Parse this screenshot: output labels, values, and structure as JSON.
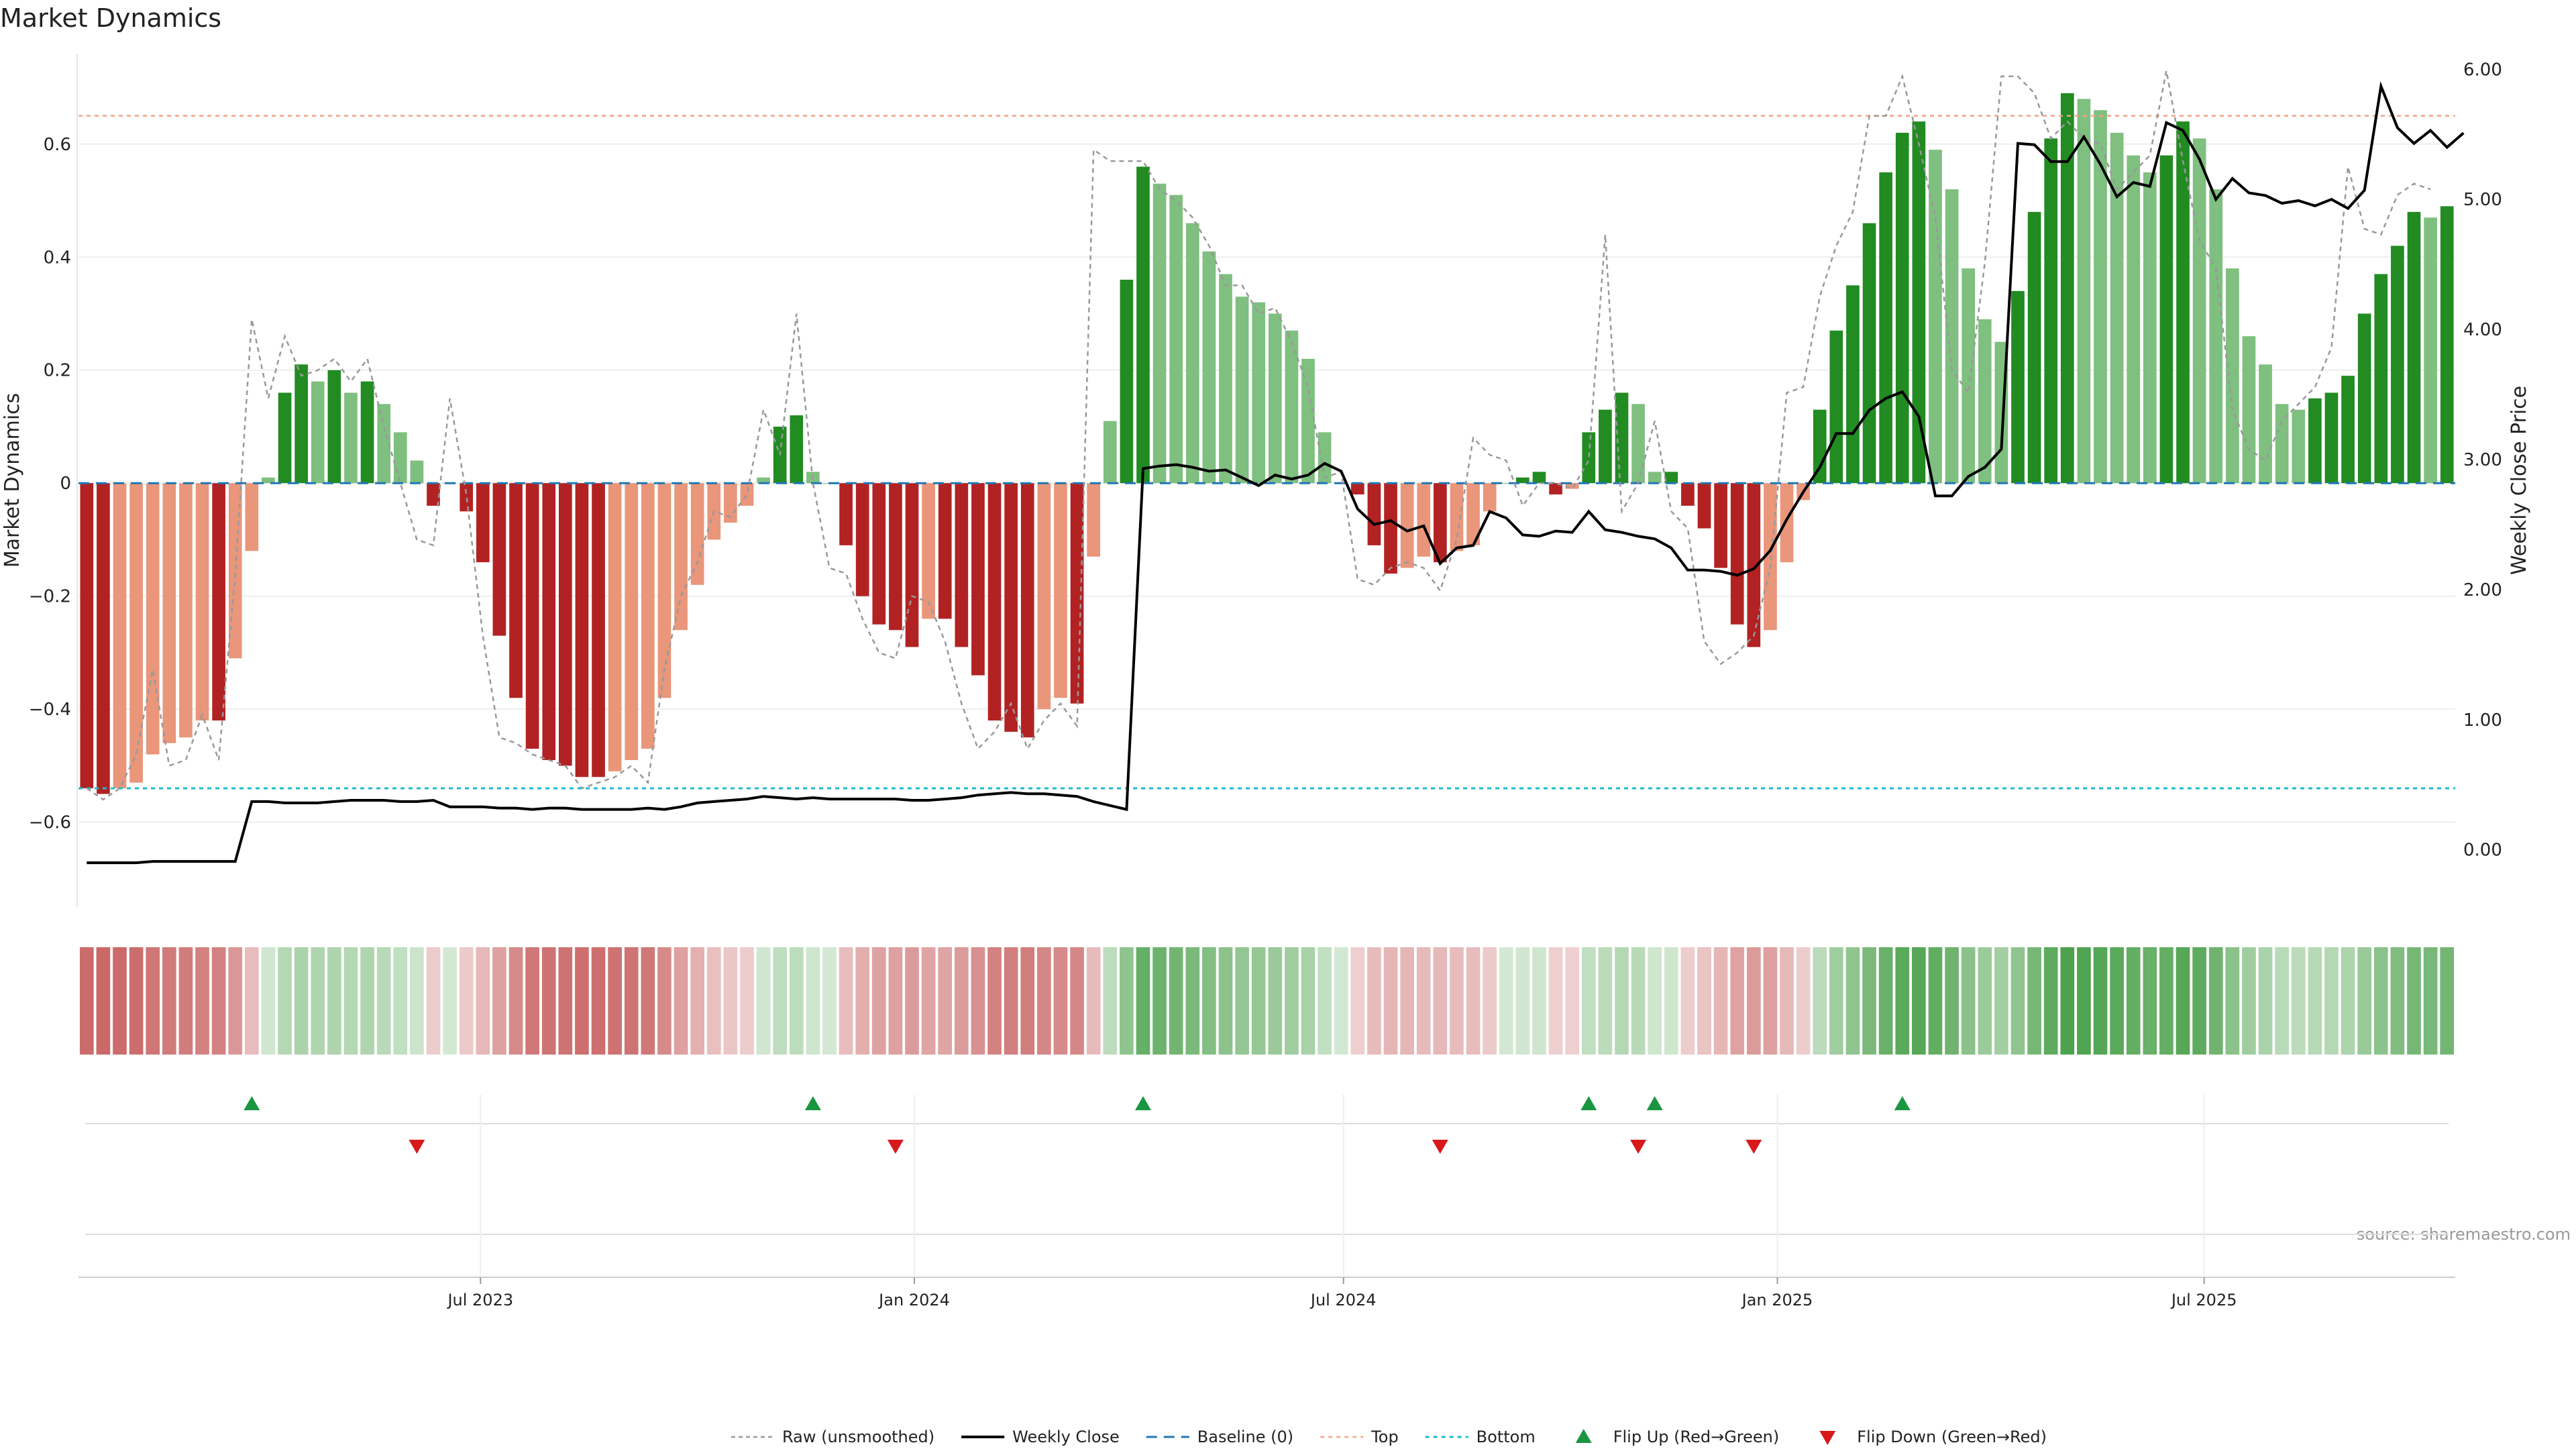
{
  "chart_data": {
    "type": "bar",
    "title": "Market Dynamics",
    "source": "source: sharemaestro.com",
    "left_axis": {
      "label": "Market Dynamics",
      "ylim": [
        -0.75,
        0.76
      ],
      "ticks": [
        -0.6,
        -0.4,
        -0.2,
        0,
        0.2,
        0.4,
        0.6
      ],
      "tick_labels": [
        "−0.6",
        "−0.4",
        "−0.2",
        "0",
        "0.2",
        "0.4",
        "0.6"
      ]
    },
    "right_axis": {
      "label": "Weekly Close Price",
      "ylim": [
        -0.44,
        6.12
      ],
      "ticks": [
        0,
        1,
        2,
        3,
        4,
        5,
        6
      ],
      "tick_labels": [
        "0.00",
        "1.00",
        "2.00",
        "3.00",
        "4.00",
        "5.00",
        "6.00"
      ]
    },
    "x_axis": {
      "start_date": "2023-01-15",
      "interval_days": 7,
      "ticks": [
        {
          "date": "2023-07-01",
          "label": "Jul 2023"
        },
        {
          "date": "2024-01-01",
          "label": "Jan 2024"
        },
        {
          "date": "2024-07-01",
          "label": "Jul 2024"
        },
        {
          "date": "2025-01-01",
          "label": "Jan 2025"
        },
        {
          "date": "2025-07-01",
          "label": "Jul 2025"
        }
      ]
    },
    "levels": {
      "top": 0.65,
      "bottom": -0.54,
      "baseline": 0
    },
    "colors": {
      "strong_red": "#b22222",
      "weak_red": "#e9967a",
      "strong_green": "#228b22",
      "weak_green": "#7fbf7f",
      "raw": "#999999",
      "close": "#000000",
      "baseline": "#1f77b4",
      "top": "#f4a582",
      "bottom": "#17becf",
      "flip_up": "#1a9641",
      "flip_down": "#d7191c"
    },
    "series": [
      {
        "name": "Market Dynamics",
        "values": [
          -0.54,
          -0.55,
          -0.54,
          -0.53,
          -0.48,
          -0.46,
          -0.45,
          -0.42,
          -0.42,
          -0.31,
          -0.12,
          0.01,
          0.16,
          0.21,
          0.18,
          0.2,
          0.16,
          0.18,
          0.14,
          0.09,
          0.04,
          -0.04,
          0.0,
          -0.05,
          -0.14,
          -0.27,
          -0.38,
          -0.47,
          -0.49,
          -0.5,
          -0.52,
          -0.52,
          -0.51,
          -0.49,
          -0.47,
          -0.38,
          -0.26,
          -0.18,
          -0.1,
          -0.07,
          -0.04,
          0.01,
          0.1,
          0.12,
          0.02,
          0.0,
          -0.11,
          -0.2,
          -0.25,
          -0.26,
          -0.29,
          -0.24,
          -0.24,
          -0.29,
          -0.34,
          -0.42,
          -0.44,
          -0.45,
          -0.4,
          -0.38,
          -0.39,
          -0.13,
          0.11,
          0.36,
          0.56,
          0.53,
          0.51,
          0.46,
          0.41,
          0.37,
          0.33,
          0.32,
          0.3,
          0.27,
          0.22,
          0.09,
          0.0,
          -0.02,
          -0.11,
          -0.16,
          -0.15,
          -0.13,
          -0.14,
          -0.12,
          -0.11,
          -0.05,
          0.0,
          0.01,
          0.02,
          -0.02,
          -0.01,
          0.09,
          0.13,
          0.16,
          0.14,
          0.02,
          0.02,
          -0.04,
          -0.08,
          -0.15,
          -0.25,
          -0.29,
          -0.26,
          -0.14,
          -0.03,
          0.13,
          0.27,
          0.35,
          0.46,
          0.55,
          0.62,
          0.64,
          0.59,
          0.52,
          0.38,
          0.29,
          0.25,
          0.34,
          0.48,
          0.61,
          0.69,
          0.68,
          0.66,
          0.62,
          0.58,
          0.55,
          0.58,
          0.64,
          0.61,
          0.52,
          0.38,
          0.26,
          0.21,
          0.14,
          0.13,
          0.15,
          0.16,
          0.19,
          0.3,
          0.37,
          0.42,
          0.48,
          0.47,
          0.49
        ]
      },
      {
        "name": "Raw (unsmoothed)",
        "values": [
          -0.54,
          -0.56,
          -0.54,
          -0.48,
          -0.33,
          -0.5,
          -0.49,
          -0.41,
          -0.49,
          -0.16,
          0.29,
          0.15,
          0.26,
          0.19,
          0.2,
          0.22,
          0.18,
          0.22,
          0.1,
          0.0,
          -0.1,
          -0.11,
          0.15,
          -0.02,
          -0.27,
          -0.45,
          -0.46,
          -0.48,
          -0.49,
          -0.5,
          -0.54,
          -0.53,
          -0.52,
          -0.5,
          -0.53,
          -0.33,
          -0.2,
          -0.14,
          -0.05,
          -0.06,
          -0.02,
          0.13,
          0.05,
          0.3,
          0.0,
          -0.15,
          -0.16,
          -0.24,
          -0.3,
          -0.31,
          -0.2,
          -0.21,
          -0.28,
          -0.39,
          -0.47,
          -0.44,
          -0.39,
          -0.47,
          -0.42,
          -0.39,
          -0.43,
          0.59,
          0.57,
          0.57,
          0.57,
          0.52,
          0.5,
          0.47,
          0.42,
          0.35,
          0.35,
          0.3,
          0.31,
          0.25,
          0.17,
          0.01,
          0.02,
          -0.17,
          -0.18,
          -0.15,
          -0.14,
          -0.15,
          -0.19,
          -0.1,
          0.08,
          0.05,
          0.04,
          -0.04,
          0.0,
          0.0,
          -0.01,
          0.04,
          0.44,
          -0.05,
          0.0,
          0.11,
          -0.05,
          -0.08,
          -0.28,
          -0.32,
          -0.3,
          -0.27,
          -0.15,
          0.16,
          0.17,
          0.33,
          0.42,
          0.48,
          0.65,
          0.65,
          0.72,
          0.6,
          0.47,
          0.2,
          0.16,
          0.39,
          0.72,
          0.72,
          0.69,
          0.61,
          0.64,
          0.61,
          0.6,
          0.52,
          0.55,
          0.58,
          0.73,
          0.57,
          0.43,
          0.38,
          0.13,
          0.06,
          0.04,
          0.11,
          0.14,
          0.17,
          0.24,
          0.56,
          0.45,
          0.44,
          0.51,
          0.53,
          0.52
        ]
      },
      {
        "name": "Weekly Close",
        "values": [
          -0.1,
          -0.1,
          -0.1,
          -0.1,
          -0.09,
          -0.09,
          -0.09,
          -0.09,
          -0.09,
          -0.09,
          0.37,
          0.37,
          0.36,
          0.36,
          0.36,
          0.37,
          0.38,
          0.38,
          0.38,
          0.37,
          0.37,
          0.38,
          0.33,
          0.33,
          0.33,
          0.32,
          0.32,
          0.31,
          0.32,
          0.32,
          0.31,
          0.31,
          0.31,
          0.31,
          0.32,
          0.31,
          0.33,
          0.36,
          0.37,
          0.38,
          0.39,
          0.41,
          0.4,
          0.39,
          0.4,
          0.39,
          0.39,
          0.39,
          0.39,
          0.39,
          0.38,
          0.38,
          0.39,
          0.4,
          0.42,
          0.43,
          0.44,
          0.43,
          0.43,
          0.42,
          0.41,
          0.37,
          0.34,
          0.31,
          2.93,
          2.95,
          2.96,
          2.94,
          2.91,
          2.92,
          2.86,
          2.8,
          2.88,
          2.85,
          2.88,
          2.97,
          2.91,
          2.62,
          2.5,
          2.53,
          2.45,
          2.49,
          2.2,
          2.32,
          2.34,
          2.6,
          2.55,
          2.42,
          2.41,
          2.45,
          2.44,
          2.6,
          2.46,
          2.44,
          2.41,
          2.39,
          2.32,
          2.15,
          2.15,
          2.14,
          2.11,
          2.16,
          2.3,
          2.54,
          2.75,
          2.94,
          3.2,
          3.2,
          3.38,
          3.47,
          3.52,
          3.33,
          2.72,
          2.72,
          2.87,
          2.94,
          3.08,
          5.43,
          5.42,
          5.29,
          5.29,
          5.48,
          5.27,
          5.02,
          5.13,
          5.1,
          5.59,
          5.53,
          5.31,
          5.0,
          5.16,
          5.05,
          5.03,
          4.97,
          4.99,
          4.95,
          5.0,
          4.93,
          5.07,
          5.87,
          5.55,
          5.43,
          5.53,
          5.4,
          5.51
        ]
      },
      {
        "name": "Baseline (0)"
      },
      {
        "name": "Top"
      },
      {
        "name": "Bottom"
      },
      {
        "name": "Flip Up (Red→Green)",
        "dates": [
          "2023-03-26",
          "2023-11-19",
          "2024-04-07",
          "2024-10-13",
          "2024-11-10",
          "2025-02-23"
        ]
      },
      {
        "name": "Flip Down (Green→Red)",
        "dates": [
          "2023-06-04",
          "2023-12-24",
          "2024-08-11",
          "2024-11-03",
          "2024-12-22"
        ]
      }
    ]
  }
}
